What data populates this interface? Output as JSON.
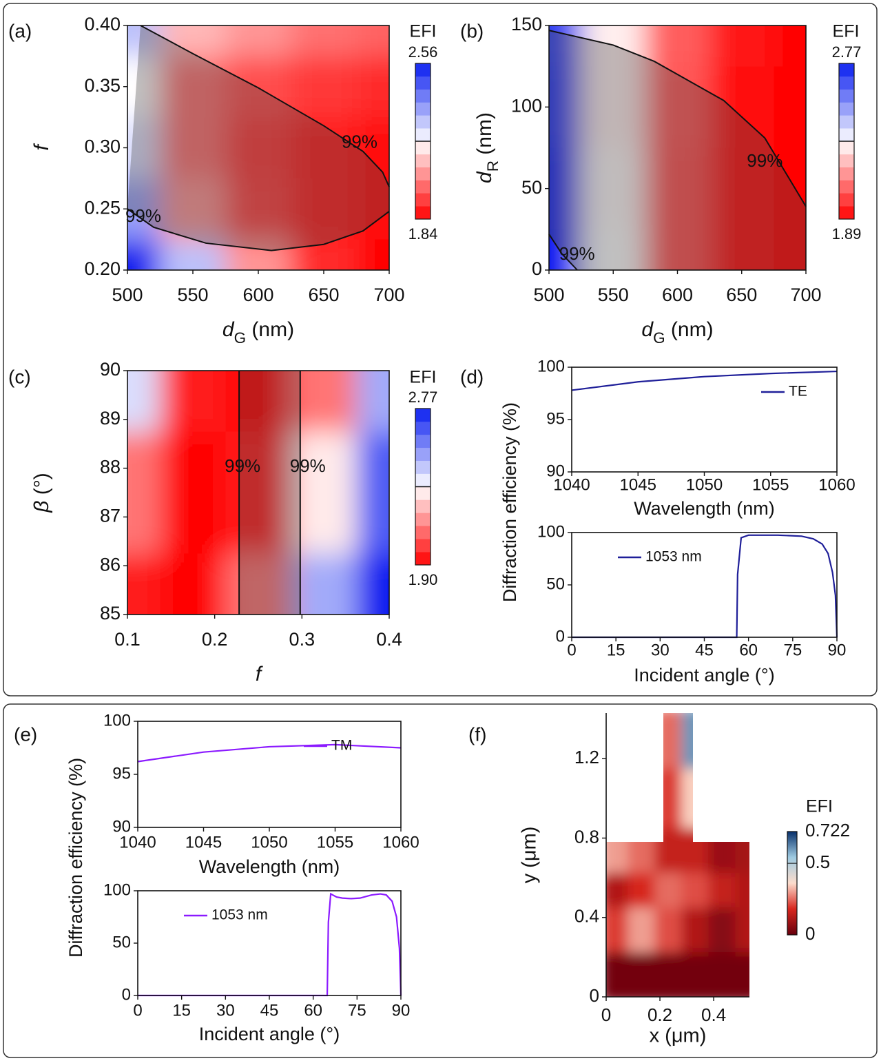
{
  "chart_data": [
    {
      "type": "contour",
      "panel": "(a)",
      "xlabel": [
        "d",
        "G",
        " (nm)"
      ],
      "ylabel": [
        "f"
      ],
      "xlim": [
        500,
        700
      ],
      "xticks": [
        500,
        550,
        600,
        650,
        700
      ],
      "ylim": [
        0.2,
        0.4
      ],
      "yticks": [
        {
          "value": 0.2,
          "label": "0.20"
        },
        0.25,
        {
          "value": 0.3,
          "label": "0.30"
        },
        0.35,
        {
          "value": 0.4,
          "label": "0.40"
        }
      ],
      "x": [
        500,
        550,
        600,
        650,
        700
      ],
      "y": [
        0.4,
        0.35,
        0.3,
        0.25,
        0.2
      ],
      "z": [
        [
          2.3,
          2.1,
          2.05,
          2.0,
          1.98
        ],
        [
          2.2,
          2.0,
          1.95,
          1.92,
          1.9
        ],
        [
          2.25,
          2.0,
          1.92,
          1.88,
          1.86
        ],
        [
          2.35,
          2.05,
          1.93,
          1.88,
          1.86
        ],
        [
          2.56,
          2.3,
          2.05,
          1.9,
          1.84
        ]
      ],
      "colormap": [
        "#ff0000",
        "#ffffff",
        "#0a1ef0"
      ],
      "colorbar": {
        "title": "EFI",
        "zlim": [
          1.84,
          2.56
        ],
        "zticks": [
          1.84,
          2.56
        ]
      },
      "shade_color": "#4a4a4a",
      "contour_lines": [
        {
          "label": "99%",
          "x": [
            510,
            550,
            600,
            650,
            680,
            695,
            700
          ],
          "y": [
            0.4,
            0.377,
            0.349,
            0.318,
            0.297,
            0.28,
            0.268
          ]
        },
        {
          "label": "99%",
          "x": [
            500,
            520,
            560,
            610,
            650,
            680,
            700
          ],
          "y": [
            0.25,
            0.235,
            0.222,
            0.216,
            0.221,
            0.232,
            0.248
          ]
        }
      ]
    },
    {
      "type": "contour",
      "panel": "(b)",
      "xlabel": [
        "d",
        "G",
        " (nm)"
      ],
      "ylabel": [
        "d",
        "R",
        " (nm)"
      ],
      "xlim": [
        500,
        700
      ],
      "xticks": [
        500,
        550,
        600,
        650,
        700
      ],
      "ylim": [
        0,
        150
      ],
      "yticks": [
        0,
        50,
        100,
        150
      ],
      "x": [
        500,
        550,
        600,
        650,
        700
      ],
      "y": [
        150,
        100,
        50,
        0
      ],
      "z": [
        [
          2.7,
          2.3,
          2.05,
          1.93,
          1.89
        ],
        [
          2.72,
          2.3,
          2.04,
          1.92,
          1.89
        ],
        [
          2.75,
          2.32,
          2.03,
          1.92,
          1.89
        ],
        [
          2.77,
          2.33,
          2.03,
          1.92,
          1.89
        ]
      ],
      "colormap": [
        "#ff0000",
        "#ffffff",
        "#0a1ef0"
      ],
      "colorbar": {
        "title": "EFI",
        "zlim": [
          1.89,
          2.77
        ],
        "zticks": [
          1.89,
          2.77
        ]
      },
      "shade_color": "#4a4a4a",
      "contour_lines": [
        {
          "label": "99%",
          "x": [
            500,
            550,
            582,
            636,
            668,
            700
          ],
          "y": [
            147,
            138,
            128,
            104,
            81,
            39
          ]
        },
        {
          "label": "99%",
          "x": [
            500,
            510,
            522
          ],
          "y": [
            22,
            10,
            0
          ]
        }
      ]
    },
    {
      "type": "contour",
      "panel": "(c)",
      "xlabel": [
        "f"
      ],
      "ylabel": [
        "β",
        " (°)"
      ],
      "xlim": [
        0.1,
        0.4
      ],
      "xticks": [
        0.1,
        0.2,
        0.3,
        0.4
      ],
      "ylim": [
        85,
        90
      ],
      "yticks": [
        85,
        86,
        87,
        88,
        89,
        90
      ],
      "x": [
        0.1,
        0.175,
        0.25,
        0.325,
        0.4
      ],
      "y": [
        90,
        87.5,
        85
      ],
      "z": [
        [
          2.4,
          1.95,
          1.9,
          2.1,
          2.5
        ],
        [
          2.1,
          1.9,
          1.95,
          2.3,
          2.65
        ],
        [
          1.95,
          1.9,
          2.1,
          2.5,
          2.77
        ]
      ],
      "colormap": [
        "#ff0000",
        "#ffffff",
        "#0a1ef0"
      ],
      "colorbar": {
        "title": "EFI",
        "zlim": [
          1.9,
          2.77
        ],
        "zticks": [
          {
            "value": 1.9,
            "label": "1.90"
          },
          2.77
        ]
      },
      "shade_color": "#4a4a4a",
      "contour_lines": [
        {
          "label": "99%",
          "x": [
            0.228,
            0.228
          ],
          "y": [
            85,
            90
          ]
        },
        {
          "label": "99%",
          "x": [
            0.298,
            0.298
          ],
          "y": [
            85,
            90
          ]
        }
      ]
    },
    {
      "type": "line",
      "panel": "(d)",
      "xlabel": "Wavelength (nm)",
      "ylabel": "Diffraction efficiency  (%)",
      "xlim": [
        1040,
        1060
      ],
      "xticks": [
        1040,
        1045,
        1050,
        1055,
        1060
      ],
      "ylim": [
        90,
        100
      ],
      "yticks": [
        90,
        95,
        100
      ],
      "legend": "upper right",
      "x": [
        1040,
        1045,
        1050,
        1055,
        1060
      ],
      "series": [
        {
          "name": "TE",
          "color": "#1f1f99",
          "values": [
            97.8,
            98.6,
            99.1,
            99.4,
            99.6
          ]
        }
      ]
    },
    {
      "type": "line",
      "xlabel": "Incident angle (°)",
      "xlim": [
        0,
        90
      ],
      "xticks": [
        0,
        15,
        30,
        45,
        60,
        75,
        90
      ],
      "ylim": [
        0,
        100
      ],
      "yticks": [
        0,
        50,
        100
      ],
      "legend": "upper left",
      "x": [
        0,
        15,
        30,
        45,
        56,
        56.3,
        57.5,
        60,
        70,
        78,
        82,
        85,
        87,
        88.5,
        89.5,
        90
      ],
      "series": [
        {
          "name": "1053 nm",
          "color": "#1f1f99",
          "values": [
            0,
            0,
            0,
            0,
            0,
            60,
            95,
            97.5,
            97.5,
            96.5,
            94,
            89,
            80,
            62,
            40,
            0
          ]
        }
      ]
    },
    {
      "type": "line",
      "panel": "(e)",
      "xlabel": "Wavelength (nm)",
      "ylabel": "Diffraction efficiency  (%)",
      "xlim": [
        1040,
        1060
      ],
      "xticks": [
        1040,
        1045,
        1050,
        1055,
        1060
      ],
      "ylim": [
        90,
        100
      ],
      "yticks": [
        90,
        95,
        100
      ],
      "legend": "upper center",
      "x": [
        1040,
        1045,
        1050,
        1055,
        1060
      ],
      "series": [
        {
          "name": "TM",
          "color": "#8b1aff",
          "values": [
            96.2,
            97.1,
            97.6,
            97.8,
            97.5
          ]
        }
      ]
    },
    {
      "type": "line",
      "xlabel": "Incident angle (°)",
      "xlim": [
        0,
        90
      ],
      "xticks": [
        0,
        15,
        30,
        45,
        60,
        75,
        90
      ],
      "ylim": [
        0,
        100
      ],
      "yticks": [
        0,
        50,
        100
      ],
      "legend": "upper left",
      "x": [
        0,
        15,
        30,
        45,
        60,
        64.8,
        65.2,
        66,
        68,
        70,
        73,
        76,
        80,
        83,
        85,
        87,
        88.5,
        89.5,
        90
      ],
      "series": [
        {
          "name": "1053 nm",
          "color": "#8b1aff",
          "values": [
            0,
            0,
            0,
            0,
            0,
            0,
            70,
            97,
            94,
            93,
            92.5,
            93,
            96,
            97,
            96,
            90,
            75,
            45,
            0
          ]
        }
      ]
    },
    {
      "type": "field",
      "panel": "(f)",
      "xlabel": "x (μm)",
      "ylabel": "y (μm)",
      "xlim": [
        0,
        0.533
      ],
      "xticks": [
        0,
        0.2,
        0.4
      ],
      "ylim": [
        0,
        1.43
      ],
      "yticks": [
        0,
        0.4,
        0.8,
        1.2
      ],
      "x": [
        0.03,
        0.13,
        0.23,
        0.33,
        0.43,
        0.53
      ],
      "y": [
        1.3,
        1.0,
        0.7,
        0.55,
        0.35,
        0.1
      ],
      "z": [
        [
          null,
          null,
          0.25,
          0.6,
          null,
          null
        ],
        [
          null,
          null,
          0.2,
          0.35,
          null,
          null
        ],
        [
          0.3,
          0.25,
          0.15,
          0.15,
          0.08,
          0.1
        ],
        [
          0.12,
          0.18,
          0.25,
          0.22,
          0.15,
          0.12
        ],
        [
          0.2,
          0.3,
          0.22,
          0.12,
          0.05,
          0.12
        ],
        [
          0.02,
          0.02,
          0.02,
          0.02,
          0.02,
          0.02
        ]
      ],
      "colormap": [
        "#67000d",
        "#d7261e",
        "#fcdccc",
        "#9ecae1",
        "#08306b"
      ],
      "colorbar": {
        "title": "EFI",
        "zlim": [
          0,
          0.722
        ],
        "zticks": [
          0,
          0.5,
          0.722
        ]
      }
    }
  ]
}
